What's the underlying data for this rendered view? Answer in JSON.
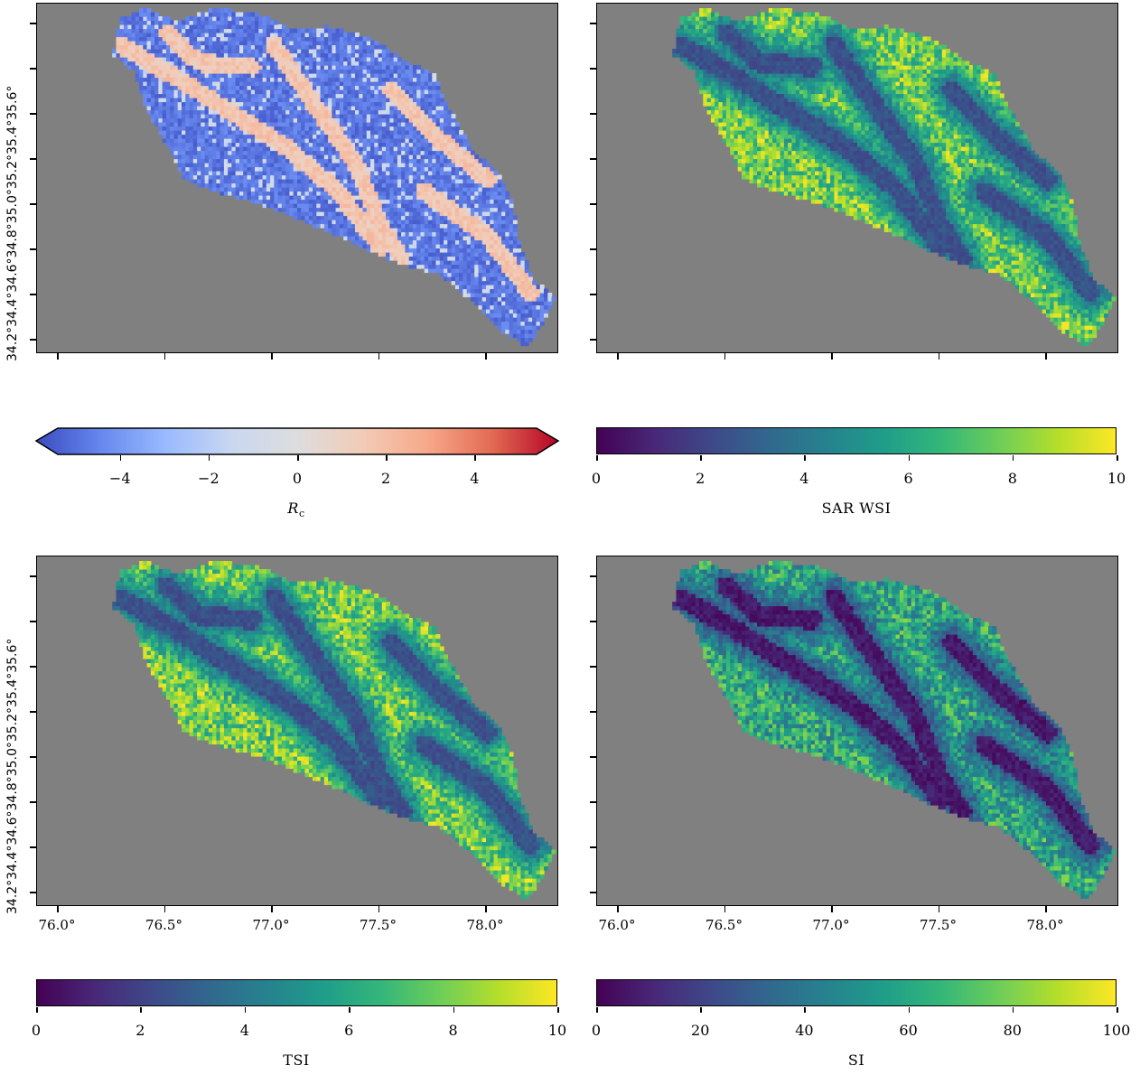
{
  "panels": [
    {
      "id": "rc",
      "colorbar": {
        "title_main": "R",
        "title_sub": "c",
        "ticks": [
          "−4",
          "−2",
          "0",
          "2",
          "4"
        ],
        "tick_values": [
          -4,
          -2,
          0,
          2,
          4
        ],
        "vmin": -5.4,
        "vmax": 5.4,
        "extend": "both",
        "colormap": "coolwarm",
        "stops": [
          "#3b4cc0",
          "#6788ee",
          "#9abbff",
          "#c9d7f0",
          "#dddddd",
          "#f2cbb7",
          "#f7a889",
          "#e26952",
          "#b40426"
        ]
      }
    },
    {
      "id": "sar_wsi",
      "colorbar": {
        "title": "SAR WSI",
        "ticks": [
          "0",
          "2",
          "4",
          "6",
          "8",
          "10"
        ],
        "tick_values": [
          0,
          2,
          4,
          6,
          8,
          10
        ],
        "vmin": 0,
        "vmax": 10,
        "extend": "neither",
        "colormap": "viridis",
        "stops": [
          "#440154",
          "#482878",
          "#3e4989",
          "#31688e",
          "#26828e",
          "#1f9e89",
          "#35b779",
          "#6ece58",
          "#b5de2b",
          "#fde725"
        ]
      }
    },
    {
      "id": "tsi",
      "colorbar": {
        "title": "TSI",
        "ticks": [
          "0",
          "2",
          "4",
          "6",
          "8",
          "10"
        ],
        "tick_values": [
          0,
          2,
          4,
          6,
          8,
          10
        ],
        "vmin": 0,
        "vmax": 10,
        "extend": "neither",
        "colormap": "viridis",
        "stops": [
          "#440154",
          "#482878",
          "#3e4989",
          "#31688e",
          "#26828e",
          "#1f9e89",
          "#35b779",
          "#6ece58",
          "#b5de2b",
          "#fde725"
        ]
      }
    },
    {
      "id": "si",
      "colorbar": {
        "title": "SI",
        "ticks": [
          "0",
          "20",
          "40",
          "60",
          "80",
          "100"
        ],
        "tick_values": [
          0,
          20,
          40,
          60,
          80,
          100
        ],
        "vmin": 0,
        "vmax": 100,
        "extend": "neither",
        "colormap": "viridis",
        "stops": [
          "#440154",
          "#482878",
          "#3e4989",
          "#31688e",
          "#26828e",
          "#1f9e89",
          "#35b779",
          "#6ece58",
          "#b5de2b",
          "#fde725"
        ]
      }
    }
  ],
  "axes": {
    "lat_label_strip": "34.2°34.4°34.6°34.8°35.0°35.2°35.4°35.6°",
    "lat_ticks": [
      34.2,
      34.4,
      34.6,
      34.8,
      35.0,
      35.2,
      35.4,
      35.6
    ],
    "lon_ticks": [
      "76.0°",
      "76.5°",
      "77.0°",
      "77.5°",
      "78.0°"
    ],
    "lon_values": [
      76.0,
      76.5,
      77.0,
      77.5,
      78.0
    ]
  },
  "colors": {
    "background_nodata": "#808080"
  }
}
